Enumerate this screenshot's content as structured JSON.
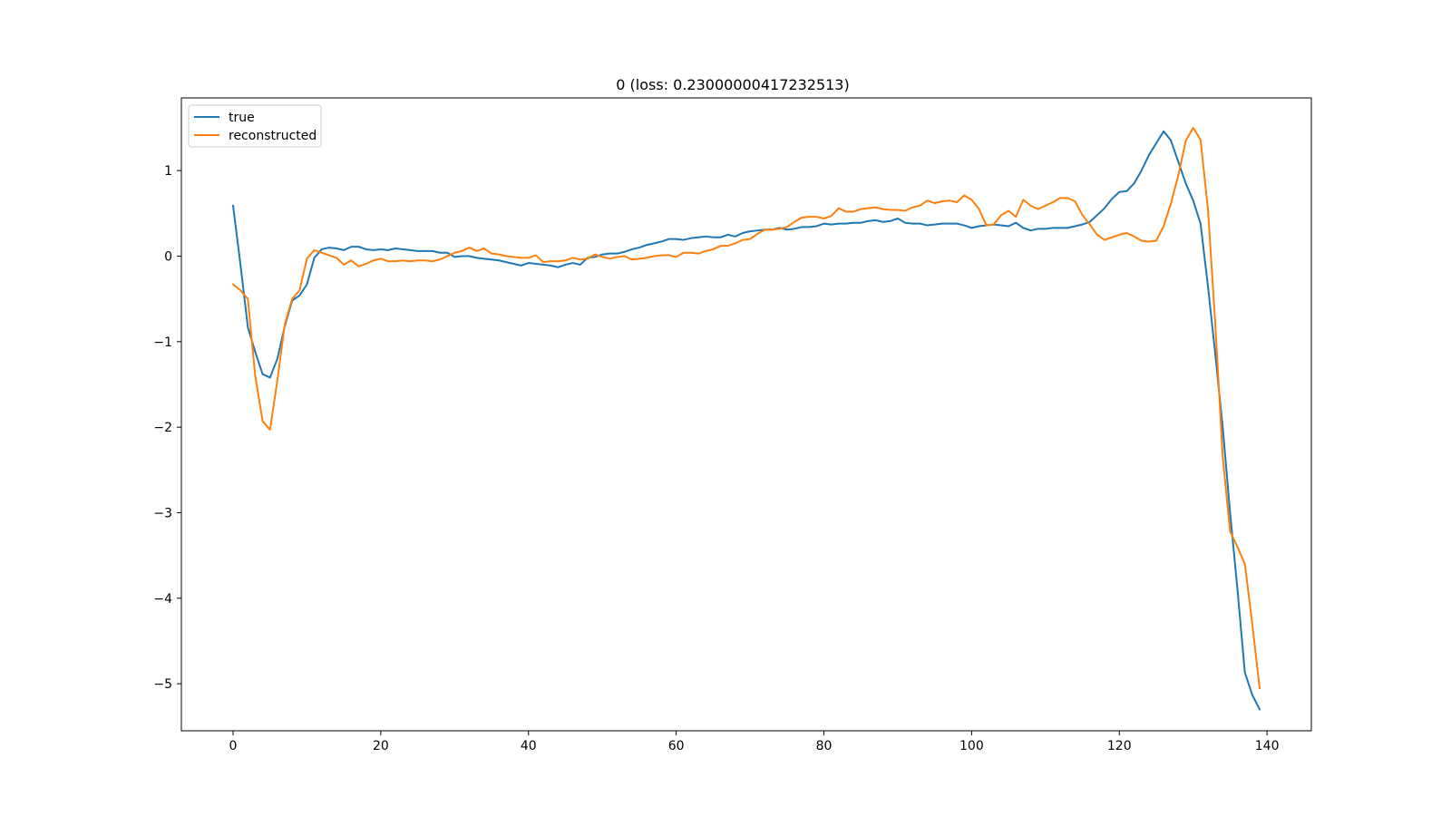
{
  "chart_data": {
    "type": "line",
    "title": "0 (loss: 0.23000000417232513)",
    "xlabel": "",
    "ylabel": "",
    "xlim": [
      -7,
      146
    ],
    "ylim": [
      -5.55,
      1.85
    ],
    "xticks": [
      0,
      20,
      40,
      60,
      80,
      100,
      120,
      140
    ],
    "xtick_labels": [
      "0",
      "20",
      "40",
      "60",
      "80",
      "100",
      "120",
      "140"
    ],
    "yticks": [
      1,
      0,
      -1,
      -2,
      -3,
      -4,
      -5
    ],
    "ytick_labels": [
      "1",
      "0",
      "−1",
      "−2",
      "−3",
      "−4",
      "−5"
    ],
    "grid": false,
    "legend_position": "upper-left",
    "series": [
      {
        "name": "true",
        "color": "#1f77b4",
        "values": [
          0.59,
          -0.1,
          -0.83,
          -1.12,
          -1.38,
          -1.42,
          -1.2,
          -0.82,
          -0.52,
          -0.46,
          -0.33,
          -0.02,
          0.08,
          0.1,
          0.09,
          0.07,
          0.11,
          0.11,
          0.08,
          0.07,
          0.08,
          0.07,
          0.09,
          0.08,
          0.07,
          0.06,
          0.06,
          0.06,
          0.04,
          0.04,
          -0.01,
          0.0,
          0.0,
          -0.02,
          -0.03,
          -0.04,
          -0.05,
          -0.07,
          -0.09,
          -0.11,
          -0.08,
          -0.09,
          -0.1,
          -0.11,
          -0.13,
          -0.1,
          -0.08,
          -0.1,
          -0.02,
          -0.01,
          0.02,
          0.03,
          0.03,
          0.05,
          0.08,
          0.1,
          0.13,
          0.15,
          0.17,
          0.2,
          0.2,
          0.19,
          0.21,
          0.22,
          0.23,
          0.22,
          0.22,
          0.25,
          0.23,
          0.27,
          0.29,
          0.3,
          0.31,
          0.31,
          0.33,
          0.31,
          0.32,
          0.34,
          0.34,
          0.35,
          0.38,
          0.37,
          0.38,
          0.38,
          0.39,
          0.39,
          0.41,
          0.42,
          0.4,
          0.41,
          0.44,
          0.39,
          0.38,
          0.38,
          0.36,
          0.37,
          0.38,
          0.38,
          0.38,
          0.36,
          0.33,
          0.35,
          0.36,
          0.37,
          0.36,
          0.35,
          0.39,
          0.33,
          0.3,
          0.32,
          0.32,
          0.33,
          0.33,
          0.33,
          0.35,
          0.37,
          0.4,
          0.48,
          0.56,
          0.67,
          0.75,
          0.76,
          0.85,
          1.0,
          1.18,
          1.32,
          1.46,
          1.35,
          1.1,
          0.85,
          0.65,
          0.38,
          -0.35,
          -1.15,
          -2.0,
          -3.0,
          -3.9,
          -4.87,
          -5.13,
          -5.3
        ]
      },
      {
        "name": "reconstructed",
        "color": "#ff7f0e",
        "values": [
          -0.33,
          -0.4,
          -0.5,
          -1.4,
          -1.93,
          -2.03,
          -1.45,
          -0.8,
          -0.5,
          -0.4,
          -0.03,
          0.07,
          0.04,
          0.01,
          -0.02,
          -0.1,
          -0.05,
          -0.12,
          -0.09,
          -0.05,
          -0.03,
          -0.06,
          -0.06,
          -0.05,
          -0.06,
          -0.05,
          -0.05,
          -0.06,
          -0.04,
          0.0,
          0.04,
          0.06,
          0.1,
          0.06,
          0.09,
          0.03,
          0.02,
          0.0,
          -0.01,
          -0.02,
          -0.02,
          0.01,
          -0.07,
          -0.06,
          -0.06,
          -0.05,
          -0.02,
          -0.04,
          -0.03,
          0.02,
          -0.01,
          -0.03,
          -0.01,
          0.0,
          -0.04,
          -0.03,
          -0.02,
          0.0,
          0.01,
          0.01,
          -0.01,
          0.04,
          0.04,
          0.03,
          0.06,
          0.08,
          0.12,
          0.12,
          0.15,
          0.19,
          0.2,
          0.26,
          0.31,
          0.31,
          0.32,
          0.34,
          0.4,
          0.45,
          0.46,
          0.46,
          0.44,
          0.47,
          0.56,
          0.52,
          0.52,
          0.55,
          0.56,
          0.57,
          0.55,
          0.54,
          0.54,
          0.53,
          0.57,
          0.59,
          0.65,
          0.62,
          0.64,
          0.65,
          0.63,
          0.71,
          0.66,
          0.55,
          0.36,
          0.37,
          0.48,
          0.53,
          0.46,
          0.66,
          0.59,
          0.55,
          0.59,
          0.63,
          0.68,
          0.68,
          0.64,
          0.48,
          0.37,
          0.25,
          0.19,
          0.22,
          0.25,
          0.27,
          0.23,
          0.18,
          0.17,
          0.18,
          0.35,
          0.62,
          0.95,
          1.35,
          1.5,
          1.36,
          0.55,
          -0.8,
          -2.35,
          -3.22,
          -3.4,
          -3.6,
          -4.3,
          -5.05
        ]
      }
    ]
  }
}
